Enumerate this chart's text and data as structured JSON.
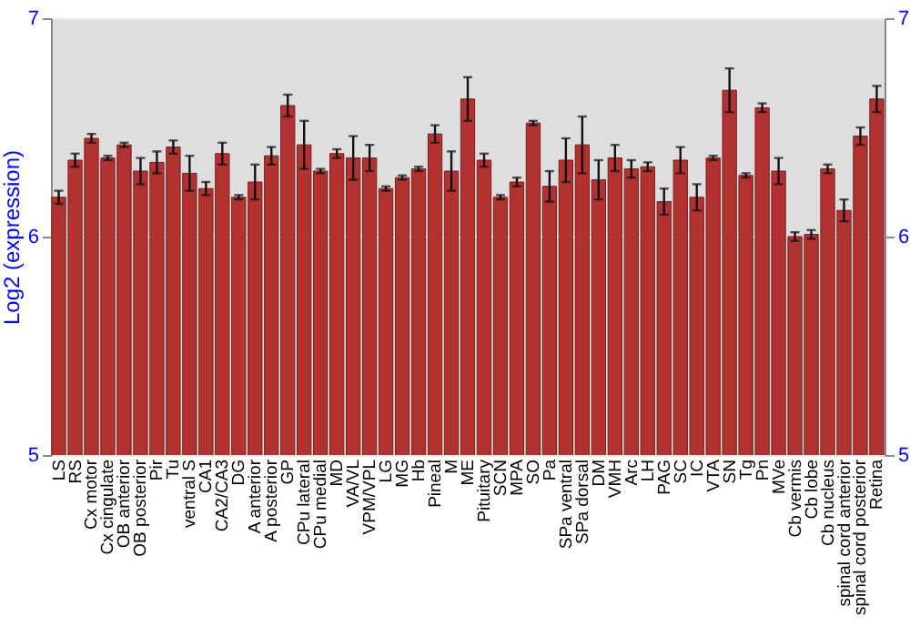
{
  "chart_data": {
    "type": "bar",
    "ylabel": "Log2 (expression)",
    "categories": [
      "LS",
      "RS",
      "Cx motor",
      "Cx cingulate",
      "OB anterior",
      "OB posterior",
      "Pir",
      "Tu",
      "ventral S",
      "CA1",
      "CA2/CA3",
      "DG",
      "A anterior",
      "A posterior",
      "GP",
      "CPu lateral",
      "CPu medial",
      "MD",
      "VA/VL",
      "VPM/VPL",
      "LG",
      "MG",
      "Hb",
      "Pineal",
      "M",
      "ME",
      "Pituitary",
      "SCN",
      "MPA",
      "SO",
      "Pa",
      "SPa ventral",
      "SPa dorsal",
      "DM",
      "VMH",
      "Arc",
      "LH",
      "PAG",
      "SC",
      "IC",
      "VTA",
      "SN",
      "Tg",
      "Pn",
      "MVe",
      "Cb vermis",
      "Cb lobe",
      "Cb nucleus",
      "spinal cord anterior",
      "spinal cord posterior",
      "Retina"
    ],
    "series": [
      {
        "color": "#b23232",
        "values": [
          6.18,
          6.35,
          6.45,
          6.36,
          6.42,
          6.3,
          6.34,
          6.41,
          6.29,
          6.22,
          6.38,
          6.18,
          6.25,
          6.37,
          6.6,
          6.42,
          6.3,
          6.38,
          6.36,
          6.36,
          6.22,
          6.27,
          6.31,
          6.47,
          6.3,
          6.63,
          6.35,
          6.18,
          6.25,
          6.52,
          6.23,
          6.35,
          6.42,
          6.26,
          6.36,
          6.31,
          6.32,
          6.16,
          6.35,
          6.18,
          6.36,
          6.67,
          6.28,
          6.59,
          6.3,
          6.0,
          6.01,
          6.31,
          6.12,
          6.46,
          6.63
        ],
        "errors": [
          0.03,
          0.03,
          0.02,
          0.01,
          0.01,
          0.06,
          0.05,
          0.03,
          0.08,
          0.03,
          0.05,
          0.01,
          0.08,
          0.04,
          0.05,
          0.11,
          0.01,
          0.02,
          0.1,
          0.06,
          0.01,
          0.01,
          0.01,
          0.04,
          0.09,
          0.1,
          0.03,
          0.01,
          0.02,
          0.01,
          0.07,
          0.1,
          0.13,
          0.09,
          0.06,
          0.04,
          0.02,
          0.06,
          0.06,
          0.06,
          0.01,
          0.1,
          0.01,
          0.02,
          0.06,
          0.02,
          0.02,
          0.02,
          0.05,
          0.04,
          0.06
        ]
      }
    ],
    "ylim": [
      5,
      7
    ],
    "yticks": [
      5,
      6,
      7
    ],
    "y2lim": [
      5,
      7
    ],
    "y2ticks": [
      5,
      6,
      7
    ],
    "grid": "y"
  }
}
